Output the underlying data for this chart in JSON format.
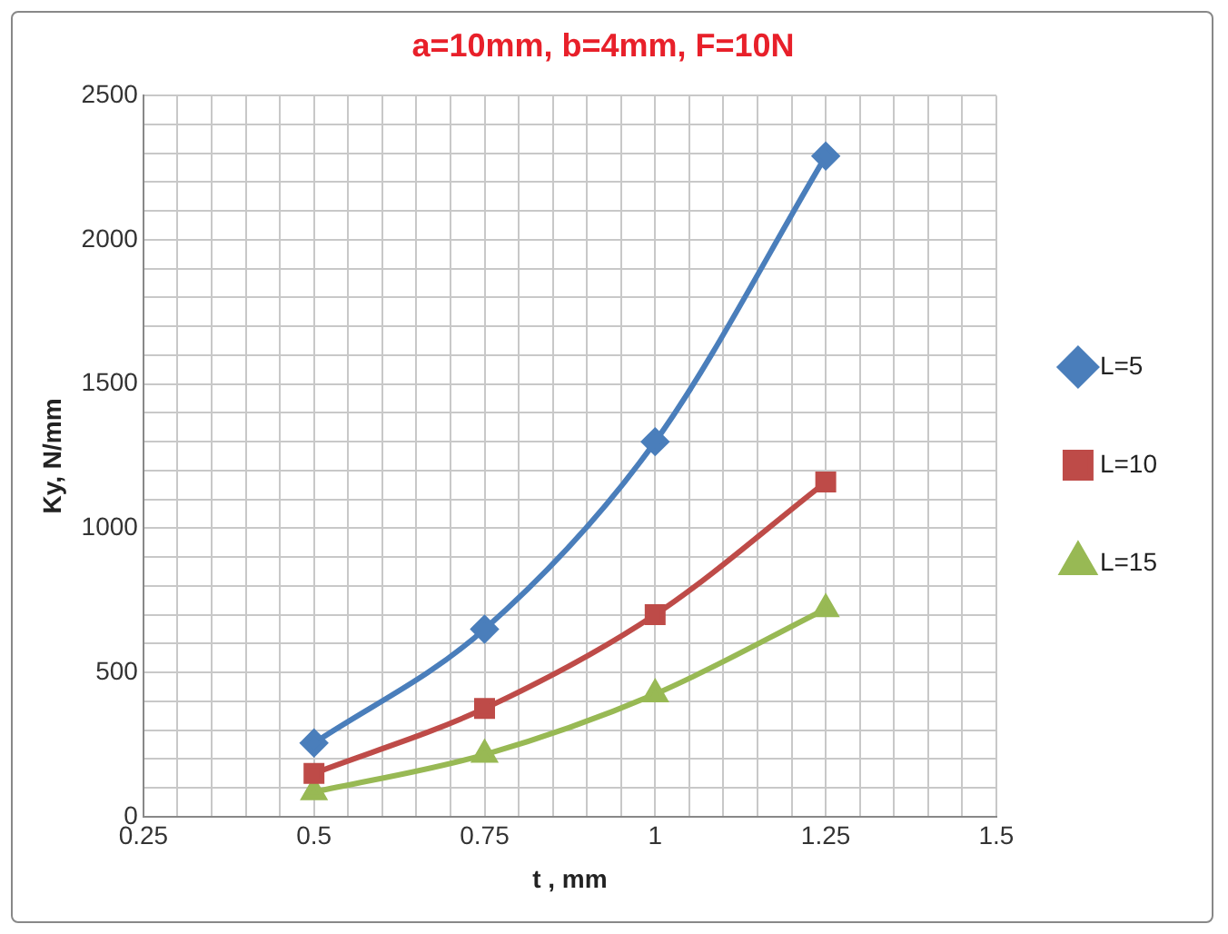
{
  "chart_data": {
    "type": "line",
    "title": "a=10mm, b=4mm, F=10N",
    "xlabel": "t , mm",
    "ylabel": "Ky, N/mm",
    "xlim": [
      0.25,
      1.5
    ],
    "xticks": [
      0.25,
      {
        "value": 0.3,
        "label": null
      },
      {
        "value": 0.35,
        "label": null
      },
      {
        "value": 0.4,
        "label": null
      },
      {
        "value": 0.45,
        "label": null
      },
      0.5,
      {
        "value": 0.55,
        "label": null
      },
      {
        "value": 0.6,
        "label": null
      },
      {
        "value": 0.65,
        "label": null
      },
      {
        "value": 0.7,
        "label": null
      },
      0.75,
      {
        "value": 0.8,
        "label": null
      },
      {
        "value": 0.85,
        "label": null
      },
      {
        "value": 0.9,
        "label": null
      },
      {
        "value": 0.95,
        "label": null
      },
      1,
      {
        "value": 1.05,
        "label": null
      },
      {
        "value": 1.1,
        "label": null
      },
      {
        "value": 1.15,
        "label": null
      },
      {
        "value": 1.2,
        "label": null
      },
      1.25,
      {
        "value": 1.3,
        "label": null
      },
      {
        "value": 1.35,
        "label": null
      },
      {
        "value": 1.4,
        "label": null
      },
      {
        "value": 1.45,
        "label": null
      },
      1.5
    ],
    "ylim": [
      0,
      2500
    ],
    "yticks": [
      0,
      {
        "value": 100,
        "label": null
      },
      {
        "value": 200,
        "label": null
      },
      {
        "value": 300,
        "label": null
      },
      {
        "value": 400,
        "label": null
      },
      500,
      {
        "value": 600,
        "label": null
      },
      {
        "value": 700,
        "label": null
      },
      {
        "value": 800,
        "label": null
      },
      {
        "value": 900,
        "label": null
      },
      1000,
      {
        "value": 1100,
        "label": null
      },
      {
        "value": 1200,
        "label": null
      },
      {
        "value": 1300,
        "label": null
      },
      {
        "value": 1400,
        "label": null
      },
      1500,
      {
        "value": 1600,
        "label": null
      },
      {
        "value": 1700,
        "label": null
      },
      {
        "value": 1800,
        "label": null
      },
      {
        "value": 1900,
        "label": null
      },
      2000,
      {
        "value": 2100,
        "label": null
      },
      {
        "value": 2200,
        "label": null
      },
      {
        "value": 2300,
        "label": null
      },
      {
        "value": 2400,
        "label": null
      },
      2500
    ],
    "x": [
      0.5,
      0.75,
      1,
      1.25
    ],
    "grid": true,
    "legend": "right",
    "series": [
      {
        "name": "L=5",
        "color": "#4a7ebb",
        "marker": "diamond",
        "values": [
          255,
          650,
          1300,
          2290
        ]
      },
      {
        "name": "L=10",
        "color": "#be4b48",
        "marker": "square",
        "values": [
          150,
          375,
          700,
          1160
        ]
      },
      {
        "name": "L=15",
        "color": "#98b954",
        "marker": "triangle",
        "values": [
          85,
          215,
          425,
          720
        ]
      }
    ]
  }
}
